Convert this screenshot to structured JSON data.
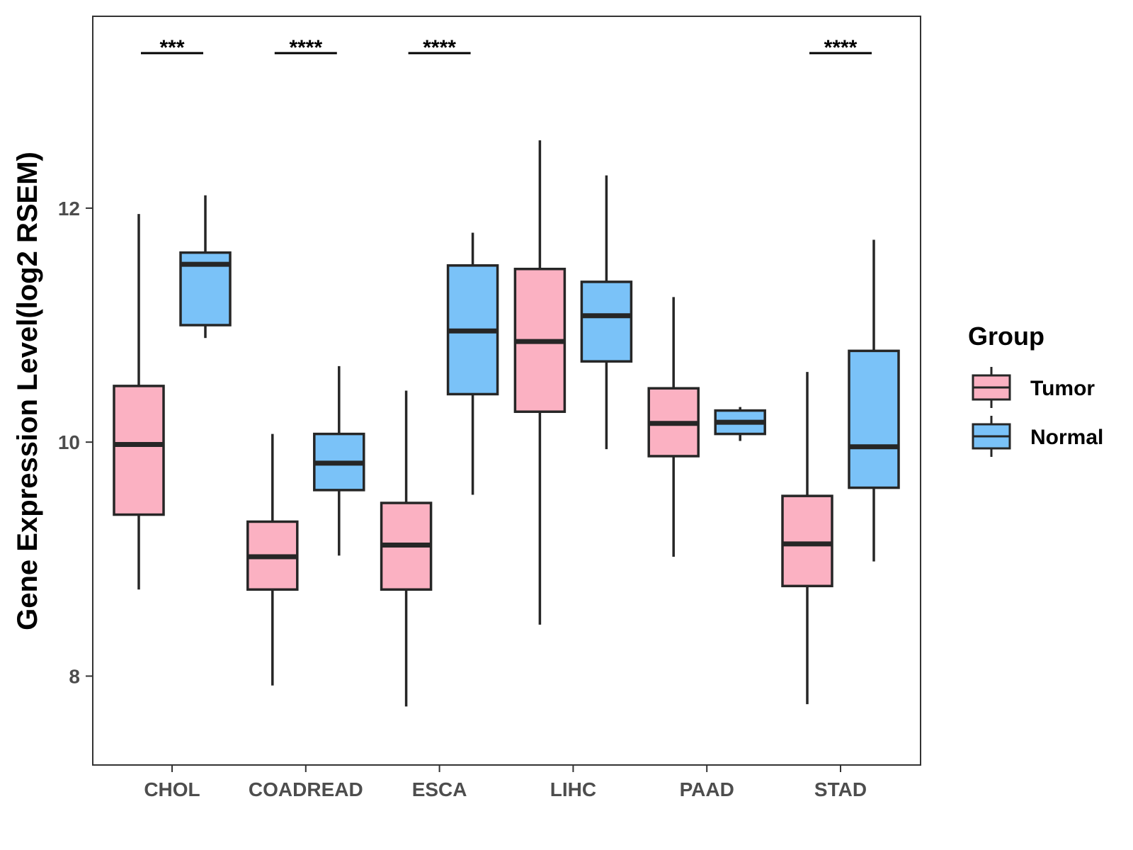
{
  "chart_data": {
    "type": "boxplot",
    "title": "",
    "xlabel": "",
    "ylabel": "Gene Expression Level(log2 RSEM)",
    "ylim": [
      7.24,
      13.64
    ],
    "yticks": [
      8,
      10,
      12
    ],
    "ytick_labels": [
      "8",
      "10",
      "12"
    ],
    "categories": [
      "CHOL",
      "COADREAD",
      "ESCA",
      "LIHC",
      "PAAD",
      "STAD"
    ],
    "legend": {
      "title": "Group",
      "position": "right",
      "entries": [
        {
          "name": "Tumor",
          "color": "#FBB1C2"
        },
        {
          "name": "Normal",
          "color": "#7AC2F8"
        }
      ]
    },
    "series": [
      {
        "name": "Tumor",
        "color": "#FBB1C2",
        "boxes": [
          {
            "category": "CHOL",
            "min": 8.74,
            "q1": 9.38,
            "median": 9.98,
            "q3": 10.48,
            "max": 11.95
          },
          {
            "category": "COADREAD",
            "min": 7.92,
            "q1": 8.74,
            "median": 9.02,
            "q3": 9.32,
            "max": 10.07
          },
          {
            "category": "ESCA",
            "min": 7.74,
            "q1": 8.74,
            "median": 9.12,
            "q3": 9.48,
            "max": 10.44
          },
          {
            "category": "LIHC",
            "min": 8.44,
            "q1": 10.26,
            "median": 10.86,
            "q3": 11.48,
            "max": 12.58
          },
          {
            "category": "PAAD",
            "min": 9.02,
            "q1": 9.88,
            "median": 10.16,
            "q3": 10.46,
            "max": 11.24
          },
          {
            "category": "STAD",
            "min": 7.76,
            "q1": 8.77,
            "median": 9.13,
            "q3": 9.54,
            "max": 10.6
          }
        ]
      },
      {
        "name": "Normal",
        "color": "#7AC2F8",
        "boxes": [
          {
            "category": "CHOL",
            "min": 10.89,
            "q1": 11.0,
            "median": 11.52,
            "q3": 11.62,
            "max": 12.11
          },
          {
            "category": "COADREAD",
            "min": 9.03,
            "q1": 9.59,
            "median": 9.82,
            "q3": 10.07,
            "max": 10.65
          },
          {
            "category": "ESCA",
            "min": 9.55,
            "q1": 10.41,
            "median": 10.95,
            "q3": 11.51,
            "max": 11.79
          },
          {
            "category": "LIHC",
            "min": 9.94,
            "q1": 10.69,
            "median": 11.08,
            "q3": 11.37,
            "max": 12.28
          },
          {
            "category": "PAAD",
            "min": 10.01,
            "q1": 10.07,
            "median": 10.17,
            "q3": 10.27,
            "max": 10.3
          },
          {
            "category": "STAD",
            "min": 8.98,
            "q1": 9.61,
            "median": 9.96,
            "q3": 10.78,
            "max": 11.73
          }
        ]
      }
    ],
    "annotations": [
      {
        "category": "CHOL",
        "label": "***"
      },
      {
        "category": "COADREAD",
        "label": "****"
      },
      {
        "category": "ESCA",
        "label": "****"
      },
      {
        "category": "STAD",
        "label": "****"
      }
    ]
  }
}
